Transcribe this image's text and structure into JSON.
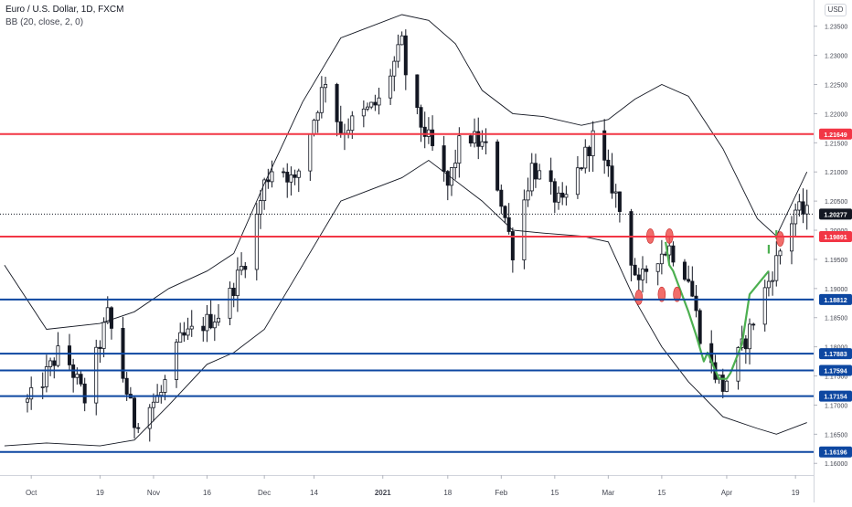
{
  "header": {
    "title": "Euro / U.S. Dollar, 1D, FXCM",
    "indicator": "BB (20, close, 2, 0)",
    "currency": "USD"
  },
  "colors": {
    "bg": "#ffffff",
    "candle": "#131722",
    "band": "#131722",
    "red_line": "#f23645",
    "blue_line": "#0d47a1",
    "last_price": "#131722",
    "marker_red": "#ef5350",
    "marker_green": "#4caf50"
  },
  "chart_data": {
    "type": "candlestick",
    "instrument": "Euro / U.S. Dollar",
    "timeframe": "1D",
    "ylim": [
      1.158,
      1.2395
    ],
    "y_ticks": [
      "1.23500",
      "1.23000",
      "1.22500",
      "1.22000",
      "1.21500",
      "1.21000",
      "1.20500",
      "1.20000",
      "1.19500",
      "1.19000",
      "1.18500",
      "1.18000",
      "1.17500",
      "1.17000",
      "1.16500",
      "1.16000"
    ],
    "x_ticks": [
      "Oct",
      "19",
      "Nov",
      "16",
      "Dec",
      "14",
      "2021",
      "18",
      "Feb",
      "15",
      "Mar",
      "15",
      "Apr",
      "19"
    ],
    "last_price": {
      "label": "1.20277",
      "value": 1.20277
    },
    "levels": [
      {
        "label": "1.21649",
        "value": 1.21649,
        "color": "red"
      },
      {
        "label": "1.19891",
        "value": 1.19891,
        "color": "red"
      },
      {
        "label": "1.18812",
        "value": 1.18812,
        "color": "blue"
      },
      {
        "label": "1.17883",
        "value": 1.17883,
        "color": "blue"
      },
      {
        "label": "1.17594",
        "value": 1.17594,
        "color": "blue"
      },
      {
        "label": "1.17154",
        "value": 1.17154,
        "color": "blue"
      },
      {
        "label": "1.16196",
        "value": 1.16196,
        "color": "blue"
      }
    ],
    "anchors": [
      [
        "2020-09-24",
        1.166
      ],
      [
        "2020-10-02",
        1.172
      ],
      [
        "2020-10-09",
        1.18
      ],
      [
        "2020-10-15",
        1.171
      ],
      [
        "2020-10-21",
        1.1855
      ],
      [
        "2020-10-28",
        1.167
      ],
      [
        "2020-11-04",
        1.172
      ],
      [
        "2020-11-09",
        1.181
      ],
      [
        "2020-11-13",
        1.183
      ],
      [
        "2020-11-20",
        1.186
      ],
      [
        "2020-11-27",
        1.1965
      ],
      [
        "2020-12-01",
        1.208
      ],
      [
        "2020-12-04",
        1.212
      ],
      [
        "2020-12-09",
        1.208
      ],
      [
        "2020-12-17",
        1.226
      ],
      [
        "2020-12-21",
        1.217
      ],
      [
        "2020-12-31",
        1.222
      ],
      [
        "2021-01-06",
        1.232
      ],
      [
        "2021-01-08",
        1.222
      ],
      [
        "2021-01-13",
        1.2155
      ],
      [
        "2021-01-18",
        1.2075
      ],
      [
        "2021-01-22",
        1.217
      ],
      [
        "2021-01-29",
        1.2135
      ],
      [
        "2021-02-04",
        1.1965
      ],
      [
        "2021-02-09",
        1.211
      ],
      [
        "2021-02-17",
        1.204
      ],
      [
        "2021-02-25",
        1.216
      ],
      [
        "2021-03-03",
        1.206
      ],
      [
        "2021-03-09",
        1.19
      ],
      [
        "2021-03-12",
        1.195
      ],
      [
        "2021-03-17",
        1.197
      ],
      [
        "2021-03-22",
        1.192
      ],
      [
        "2021-03-26",
        1.179
      ],
      [
        "2021-03-31",
        1.173
      ],
      [
        "2021-04-06",
        1.1812
      ],
      [
        "2021-04-13",
        1.193
      ],
      [
        "2021-04-19",
        1.2035
      ],
      [
        "2021-04-22",
        1.2028
      ]
    ],
    "upper_band": [
      [
        "2020-09-24",
        1.194
      ],
      [
        "2020-10-05",
        1.183
      ],
      [
        "2020-10-19",
        1.184
      ],
      [
        "2020-10-28",
        1.186
      ],
      [
        "2020-11-06",
        1.19
      ],
      [
        "2020-11-16",
        1.193
      ],
      [
        "2020-11-23",
        1.196
      ],
      [
        "2020-12-01",
        1.208
      ],
      [
        "2020-12-11",
        1.222
      ],
      [
        "2020-12-21",
        1.233
      ],
      [
        "2021-01-06",
        1.237
      ],
      [
        "2021-01-13",
        1.236
      ],
      [
        "2021-01-20",
        1.232
      ],
      [
        "2021-01-27",
        1.224
      ],
      [
        "2021-02-04",
        1.22
      ],
      [
        "2021-02-12",
        1.2195
      ],
      [
        "2021-02-22",
        1.218
      ],
      [
        "2021-03-01",
        1.219
      ],
      [
        "2021-03-08",
        1.2225
      ],
      [
        "2021-03-15",
        1.225
      ],
      [
        "2021-03-22",
        1.223
      ],
      [
        "2021-03-31",
        1.214
      ],
      [
        "2021-04-09",
        1.202
      ],
      [
        "2021-04-14",
        1.199
      ],
      [
        "2021-04-22",
        1.21
      ]
    ],
    "lower_band": [
      [
        "2020-09-24",
        1.163
      ],
      [
        "2020-10-05",
        1.1635
      ],
      [
        "2020-10-19",
        1.163
      ],
      [
        "2020-10-28",
        1.164
      ],
      [
        "2020-11-06",
        1.17
      ],
      [
        "2020-11-16",
        1.177
      ],
      [
        "2020-11-23",
        1.179
      ],
      [
        "2020-12-01",
        1.183
      ],
      [
        "2020-12-11",
        1.194
      ],
      [
        "2020-12-21",
        1.205
      ],
      [
        "2021-01-06",
        1.209
      ],
      [
        "2021-01-13",
        1.212
      ],
      [
        "2021-01-20",
        1.2085
      ],
      [
        "2021-01-27",
        1.205
      ],
      [
        "2021-02-04",
        1.2
      ],
      [
        "2021-02-12",
        1.1995
      ],
      [
        "2021-02-22",
        1.199
      ],
      [
        "2021-03-01",
        1.198
      ],
      [
        "2021-03-08",
        1.188
      ],
      [
        "2021-03-15",
        1.18
      ],
      [
        "2021-03-22",
        1.174
      ],
      [
        "2021-03-31",
        1.168
      ],
      [
        "2021-04-09",
        1.166
      ],
      [
        "2021-04-14",
        1.165
      ],
      [
        "2021-04-22",
        1.167
      ]
    ],
    "red_markers": [
      [
        "2021-03-09",
        1.1885
      ],
      [
        "2021-03-12",
        1.199
      ],
      [
        "2021-03-15",
        1.189
      ],
      [
        "2021-03-17",
        1.199
      ],
      [
        "2021-03-19",
        1.189
      ],
      [
        "2021-04-15",
        1.1985
      ]
    ],
    "green_pattern": [
      [
        "2021-03-16",
        1.198
      ],
      [
        "2021-03-17",
        1.194
      ],
      [
        "2021-03-18",
        1.193
      ],
      [
        "2021-03-22",
        1.186
      ],
      [
        "2021-03-24",
        1.182
      ],
      [
        "2021-03-26",
        1.1775
      ],
      [
        "2021-03-27",
        1.179
      ],
      [
        "2021-03-29",
        1.176
      ],
      [
        "2021-03-30",
        1.1745
      ],
      [
        "2021-04-01",
        1.1745
      ],
      [
        "2021-04-02",
        1.1755
      ],
      [
        "2021-04-05",
        1.1805
      ],
      [
        "2021-04-07",
        1.189
      ],
      [
        "2021-04-12",
        1.193
      ]
    ],
    "green_dashes": [
      [
        "2021-04-12",
        1.196,
        1.1975
      ],
      [
        "2021-04-14",
        1.1985,
        1.2
      ]
    ]
  }
}
